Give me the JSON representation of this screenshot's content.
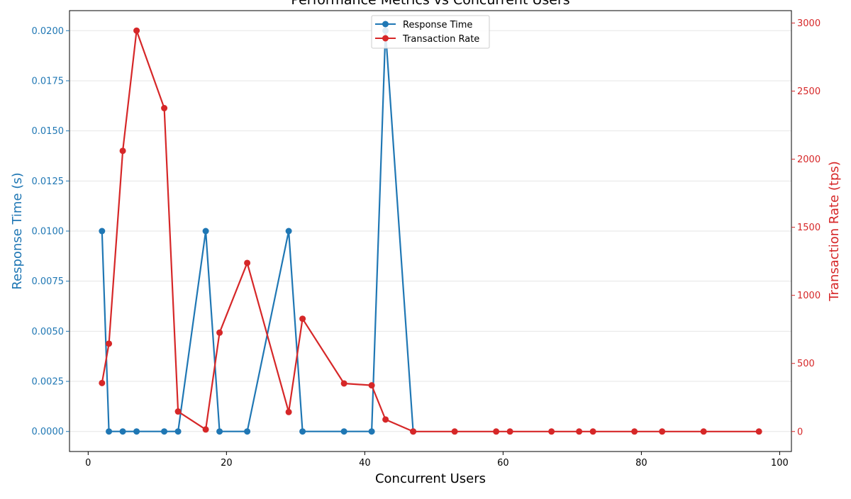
{
  "chart_data": {
    "type": "line",
    "title": "Performance Metrics vs Concurrent Users",
    "xlabel": "Concurrent Users",
    "xlim": [
      -2.7,
      101.7
    ],
    "xticks": [
      0,
      20,
      40,
      60,
      80,
      100
    ],
    "grid": "horizontal",
    "legend_position": "upper center",
    "left_axis": {
      "label": "Response Time (s)",
      "color": "#1f77b4",
      "ylim": [
        -0.001,
        0.021
      ],
      "ticks": [
        "0.0000",
        "0.0025",
        "0.0050",
        "0.0075",
        "0.0100",
        "0.0125",
        "0.0150",
        "0.0175",
        "0.0200"
      ]
    },
    "right_axis": {
      "label": "Transaction Rate (tps)",
      "color": "#d62728",
      "ylim": [
        -147,
        3091
      ],
      "ticks": [
        "0",
        "500",
        "1000",
        "1500",
        "2000",
        "2500",
        "3000"
      ]
    },
    "series": [
      {
        "name": "Response Time",
        "axis": "left",
        "color": "#1f77b4",
        "points": [
          [
            2,
            0.01
          ],
          [
            3,
            0
          ],
          [
            5,
            0
          ],
          [
            7,
            0
          ],
          [
            11,
            0
          ],
          [
            13,
            0
          ],
          [
            17,
            0.01
          ],
          [
            19,
            0
          ],
          [
            23,
            0
          ],
          [
            29,
            0.01
          ],
          [
            31,
            0
          ],
          [
            37,
            0
          ],
          [
            41,
            0
          ],
          [
            43,
            0.02
          ],
          [
            47,
            0
          ]
        ]
      },
      {
        "name": "Transaction Rate",
        "axis": "right",
        "color": "#d62728",
        "points": [
          [
            2,
            356
          ],
          [
            3,
            645
          ],
          [
            5,
            2061
          ],
          [
            7,
            2944
          ],
          [
            11,
            2375
          ],
          [
            13,
            147
          ],
          [
            17,
            15
          ],
          [
            19,
            726
          ],
          [
            23,
            1238
          ],
          [
            29,
            143
          ],
          [
            31,
            828
          ],
          [
            37,
            353
          ],
          [
            41,
            339
          ],
          [
            43,
            88
          ],
          [
            47,
            0
          ],
          [
            53,
            0
          ],
          [
            59,
            0
          ],
          [
            61,
            0
          ],
          [
            67,
            0
          ],
          [
            71,
            0
          ],
          [
            73,
            0
          ],
          [
            79,
            0
          ],
          [
            83,
            0
          ],
          [
            89,
            0
          ],
          [
            97,
            0
          ]
        ]
      }
    ]
  }
}
